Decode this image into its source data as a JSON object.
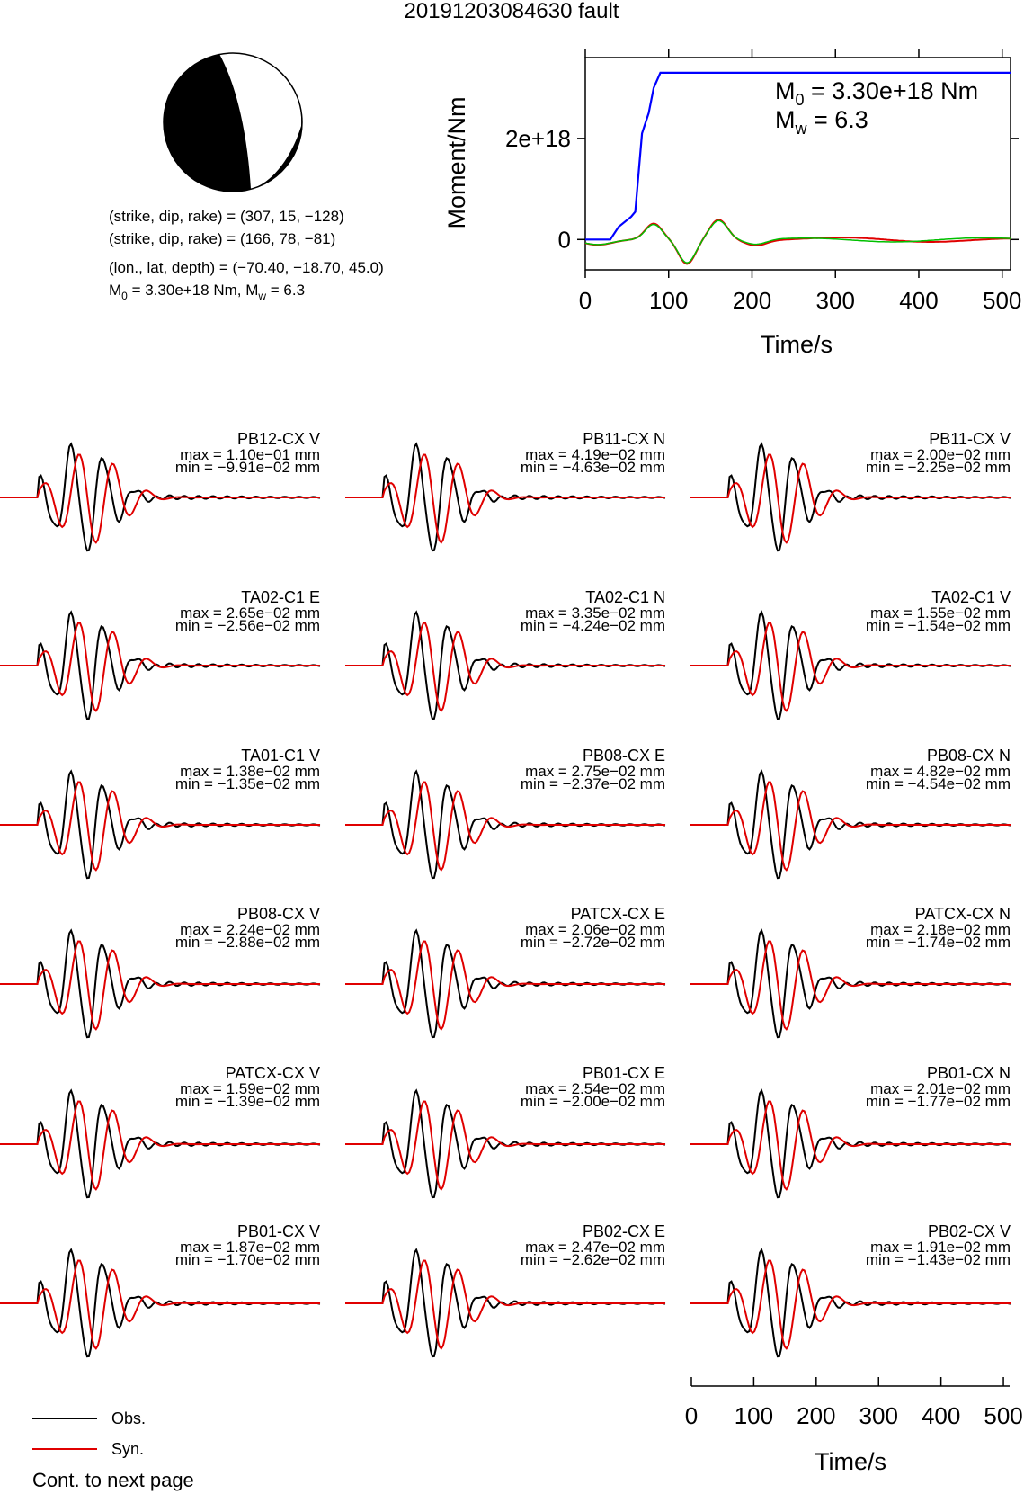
{
  "title": "20191203084630 fault",
  "mechanism": {
    "np1": "(strike, dip, rake) = (307, 15, −128)",
    "np2": "(strike, dip, rake) = (166, 78, −81)",
    "location": "(lon., lat, depth) = (−70.40, −18.70, 45.0)",
    "m0_text": "M₀ = 3.30e+18 Nm, Mᵂ = 6.3",
    "m0_prefix": "M",
    "m0_sub": "0",
    "m0_value": " = 3.30e+18 Nm, M",
    "mw_sub": "w",
    "mw_value": " = 6.3"
  },
  "chart_data": [
    {
      "type": "line",
      "name": "moment-rate",
      "xlabel": "Time/s",
      "ylabel": "Moment/Nm",
      "xlim": [
        0,
        510
      ],
      "ylim": [
        -6e+17,
        3.6e+18
      ],
      "xticks": [
        "0",
        "100",
        "200",
        "300",
        "400",
        "500"
      ],
      "yticks": [
        {
          "value": 0,
          "label": "0"
        },
        {
          "value": 2e+18,
          "label": "2e+18"
        }
      ],
      "annotations": {
        "m0_main": "M",
        "m0_sub": "0",
        "m0_rest": " = 3.30e+18 Nm",
        "mw_main": "M",
        "mw_sub": "w",
        "mw_rest": " = 6.3"
      },
      "colors": {
        "cumulative": "#0000ff",
        "obs": "#00c000",
        "syn": "#e00000"
      },
      "cumulative": {
        "x": [
          0,
          30,
          40,
          55,
          60,
          68,
          72,
          76,
          82,
          90,
          510
        ],
        "y": [
          0,
          0,
          2.5e+17,
          4.5e+17,
          5.5e+17,
          2.1e+18,
          2.3e+18,
          2.5e+18,
          3e+18,
          3.3e+18,
          3.3e+18
        ]
      },
      "wave_shape": "small oscillation"
    },
    {
      "type": "line",
      "name": "waveform-fits",
      "xlabel": "Time/s",
      "xlim": [
        0,
        510
      ],
      "xticks": [
        "0",
        "100",
        "200",
        "300",
        "400",
        "500"
      ],
      "series_colors": {
        "obs": "#000000",
        "syn": "#e00000"
      },
      "traces": [
        {
          "station": "PB12-CX V",
          "max": "max = 1.10e−01 mm",
          "min": "min = −9.91e−02 mm"
        },
        {
          "station": "PB11-CX N",
          "max": "max = 4.19e−02 mm",
          "min": "min = −4.63e−02 mm"
        },
        {
          "station": "PB11-CX V",
          "max": "max = 2.00e−02 mm",
          "min": "min = −2.25e−02 mm"
        },
        {
          "station": "TA02-C1 E",
          "max": "max = 2.65e−02 mm",
          "min": "min = −2.56e−02 mm"
        },
        {
          "station": "TA02-C1 N",
          "max": "max = 3.35e−02 mm",
          "min": "min = −4.24e−02 mm"
        },
        {
          "station": "TA02-C1 V",
          "max": "max = 1.55e−02 mm",
          "min": "min = −1.54e−02 mm"
        },
        {
          "station": "TA01-C1 V",
          "max": "max = 1.38e−02 mm",
          "min": "min = −1.35e−02 mm"
        },
        {
          "station": "PB08-CX E",
          "max": "max = 2.75e−02 mm",
          "min": "min = −2.37e−02 mm"
        },
        {
          "station": "PB08-CX N",
          "max": "max = 4.82e−02 mm",
          "min": "min = −4.54e−02 mm"
        },
        {
          "station": "PB08-CX V",
          "max": "max = 2.24e−02 mm",
          "min": "min = −2.88e−02 mm"
        },
        {
          "station": "PATCX-CX E",
          "max": "max = 2.06e−02 mm",
          "min": "min = −2.72e−02 mm"
        },
        {
          "station": "PATCX-CX N",
          "max": "max = 2.18e−02 mm",
          "min": "min = −1.74e−02 mm"
        },
        {
          "station": "PATCX-CX V",
          "max": "max = 1.59e−02 mm",
          "min": "min = −1.39e−02 mm"
        },
        {
          "station": "PB01-CX E",
          "max": "max = 2.54e−02 mm",
          "min": "min = −2.00e−02 mm"
        },
        {
          "station": "PB01-CX N",
          "max": "max = 2.01e−02 mm",
          "min": "min = −1.77e−02 mm"
        },
        {
          "station": "PB01-CX V",
          "max": "max = 1.87e−02 mm",
          "min": "min = −1.70e−02 mm"
        },
        {
          "station": "PB02-CX E",
          "max": "max = 2.47e−02 mm",
          "min": "min = −2.62e−02 mm"
        },
        {
          "station": "PB02-CX V",
          "max": "max = 1.91e−02 mm",
          "min": "min = −1.43e−02 mm"
        }
      ]
    }
  ],
  "legend": {
    "obs": "Obs.",
    "syn": "Syn."
  },
  "footer": "Cont. to next page"
}
